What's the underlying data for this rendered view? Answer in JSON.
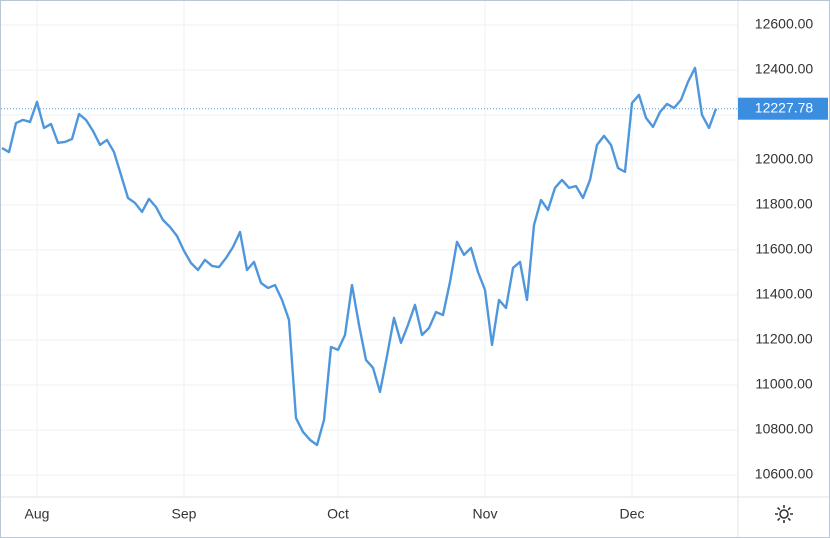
{
  "chart_data": {
    "type": "line",
    "color": "#4f97dd",
    "grid": true,
    "xlim": [
      0,
      105
    ],
    "xticks": [
      {
        "value": 5,
        "label": "Aug"
      },
      {
        "value": 26,
        "label": "Sep"
      },
      {
        "value": 48,
        "label": "Oct"
      },
      {
        "value": 69,
        "label": "Nov"
      },
      {
        "value": 90,
        "label": "Dec"
      }
    ],
    "ylim": [
      10502,
      12702
    ],
    "yticks": [
      {
        "value": 10600,
        "label": "10600.00"
      },
      {
        "value": 10800,
        "label": "10800.00"
      },
      {
        "value": 11000,
        "label": "11000.00"
      },
      {
        "value": 11200,
        "label": "11200.00"
      },
      {
        "value": 11400,
        "label": "11400.00"
      },
      {
        "value": 11600,
        "label": "11600.00"
      },
      {
        "value": 11800,
        "label": "11800.00"
      },
      {
        "value": 12000,
        "label": "12000.00"
      },
      {
        "value": 12200,
        "label": "12200.00"
      },
      {
        "value": 12400,
        "label": "12400.00"
      },
      {
        "value": 12600,
        "label": "12600.00"
      }
    ],
    "values": [
      12053,
      12035,
      12164,
      12178,
      12169,
      12258,
      12142,
      12160,
      12076,
      12080,
      12093,
      12204,
      12178,
      12129,
      12067,
      12089,
      12035,
      11933,
      11831,
      11809,
      11769,
      11827,
      11791,
      11733,
      11702,
      11662,
      11596,
      11542,
      11511,
      11556,
      11529,
      11524,
      11564,
      11613,
      11680,
      11511,
      11547,
      11453,
      11431,
      11444,
      11378,
      11289,
      10853,
      10791,
      10756,
      10733,
      10844,
      11169,
      11156,
      11222,
      11444,
      11267,
      11111,
      11076,
      10969,
      11129,
      11298,
      11187,
      11267,
      11356,
      11222,
      11253,
      11324,
      11311,
      11458,
      11636,
      11578,
      11609,
      11502,
      11422,
      11178,
      11378,
      11342,
      11520,
      11547,
      11378,
      11711,
      11822,
      11778,
      11876,
      11911,
      11876,
      11884,
      11831,
      11911,
      12067,
      12107,
      12067,
      11964,
      11947,
      12253,
      12289,
      12187,
      12147,
      12213,
      12249,
      12231,
      12267,
      12347,
      12409,
      12200,
      12142,
      12227.78
    ]
  }
}
